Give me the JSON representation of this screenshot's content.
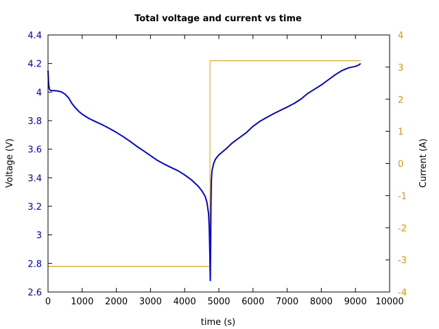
{
  "chart_data": {
    "type": "line",
    "title": "Total voltage and current vs time",
    "xlabel": "time (s)",
    "ylabel": "Voltage (V)",
    "y2label": "Current (A)",
    "xlim": [
      0,
      10000
    ],
    "ylim": [
      2.6,
      4.4
    ],
    "y2lim": [
      -4,
      4
    ],
    "x_ticks": [
      "0",
      "1000",
      "2000",
      "3000",
      "4000",
      "5000",
      "6000",
      "7000",
      "8000",
      "9000",
      "10000"
    ],
    "y_ticks": [
      "2.6",
      "2.8",
      "3",
      "3.2",
      "3.4",
      "3.6",
      "3.8",
      "4",
      "4.2",
      "4.4"
    ],
    "y2_ticks": [
      "-4",
      "-3",
      "-2",
      "-1",
      "0",
      "1",
      "2",
      "3",
      "4"
    ],
    "grid": false,
    "colors": {
      "voltage": "#0000ee",
      "current": "#e0a020",
      "left_axis_ticks": "#0000cc",
      "right_axis_ticks": "#dd9900"
    },
    "series": [
      {
        "axis": "left",
        "x": [
          0,
          20,
          40,
          60,
          100,
          200,
          300,
          400,
          500,
          600,
          700,
          800,
          900,
          1000,
          1200,
          1400,
          1600,
          1800,
          2000,
          2200,
          2400,
          2600,
          2800,
          3000,
          3200,
          3400,
          3600,
          3800,
          4000,
          4200,
          4400,
          4500,
          4600,
          4650,
          4700,
          4720,
          4730,
          4740,
          4750,
          4760,
          4770,
          4780,
          4800,
          4850,
          4900,
          5000,
          5200,
          5400,
          5600,
          5800,
          6000,
          6200,
          6400,
          6600,
          6800,
          7000,
          7200,
          7400,
          7600,
          7800,
          8000,
          8200,
          8400,
          8600,
          8800,
          9000,
          9100,
          9150
        ],
        "values": [
          4.15,
          4.05,
          4.02,
          4.015,
          4.01,
          4.01,
          4.007,
          4.0,
          3.985,
          3.96,
          3.92,
          3.89,
          3.865,
          3.845,
          3.815,
          3.792,
          3.77,
          3.745,
          3.718,
          3.688,
          3.655,
          3.62,
          3.588,
          3.555,
          3.522,
          3.496,
          3.472,
          3.45,
          3.42,
          3.385,
          3.34,
          3.31,
          3.27,
          3.23,
          3.15,
          3.05,
          2.95,
          2.82,
          2.68,
          2.9,
          3.2,
          3.38,
          3.45,
          3.5,
          3.53,
          3.56,
          3.6,
          3.645,
          3.68,
          3.715,
          3.76,
          3.795,
          3.822,
          3.848,
          3.872,
          3.895,
          3.92,
          3.95,
          3.99,
          4.02,
          4.05,
          4.085,
          4.12,
          4.15,
          4.17,
          4.18,
          4.19,
          4.2
        ]
      },
      {
        "axis": "right",
        "x": [
          0,
          4740,
          4740,
          9150
        ],
        "values": [
          -3.2,
          -3.2,
          3.2,
          3.2
        ]
      }
    ]
  }
}
